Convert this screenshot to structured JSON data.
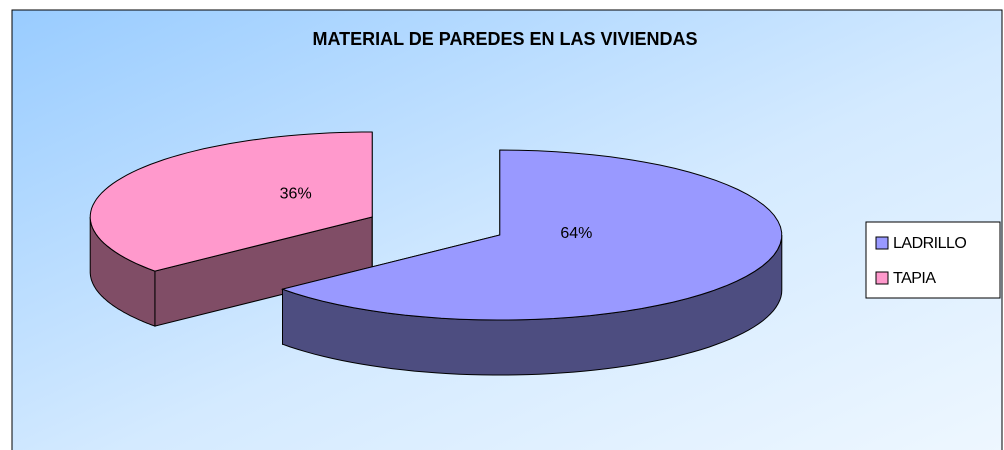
{
  "chart_data": {
    "type": "pie",
    "title": "MATERIAL DE PAREDES EN LAS VIVIENDAS",
    "categories": [
      "LADRILLO",
      "TAPIA"
    ],
    "values": [
      64,
      36
    ],
    "value_labels": [
      "64%",
      "36%"
    ],
    "colors": [
      "#9999ff",
      "#ff99cc"
    ],
    "legend": "right",
    "three_d": true
  }
}
